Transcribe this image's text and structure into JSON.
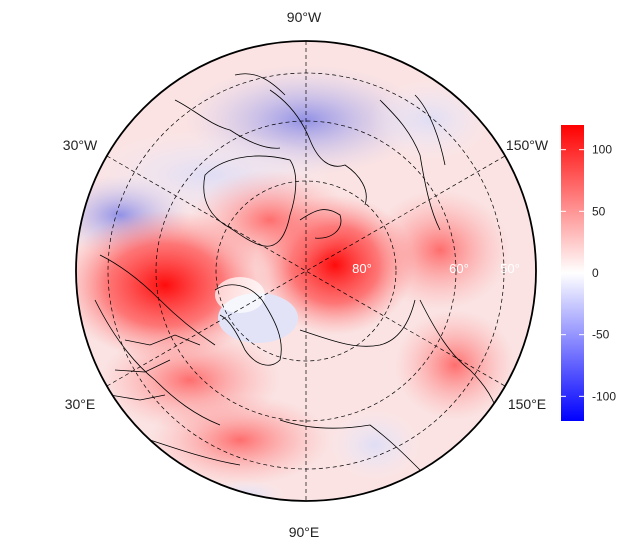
{
  "map": {
    "longitude_labels": {
      "top": "90°W",
      "upper_left": "30°W",
      "upper_right": "150°W",
      "lower_left": "30°E",
      "lower_right": "150°E",
      "bottom": "90°E"
    },
    "latitude_labels": [
      "80°",
      "60°",
      "50°"
    ]
  },
  "colorbar": {
    "ticks": [
      "100",
      "50",
      "0",
      "-50",
      "-100"
    ],
    "tick_values": [
      100,
      50,
      0,
      -50,
      -100
    ],
    "range": [
      -120,
      120
    ],
    "colors": {
      "low": "#0000ff",
      "mid": "#ffffff",
      "high": "#ff0000"
    }
  }
}
